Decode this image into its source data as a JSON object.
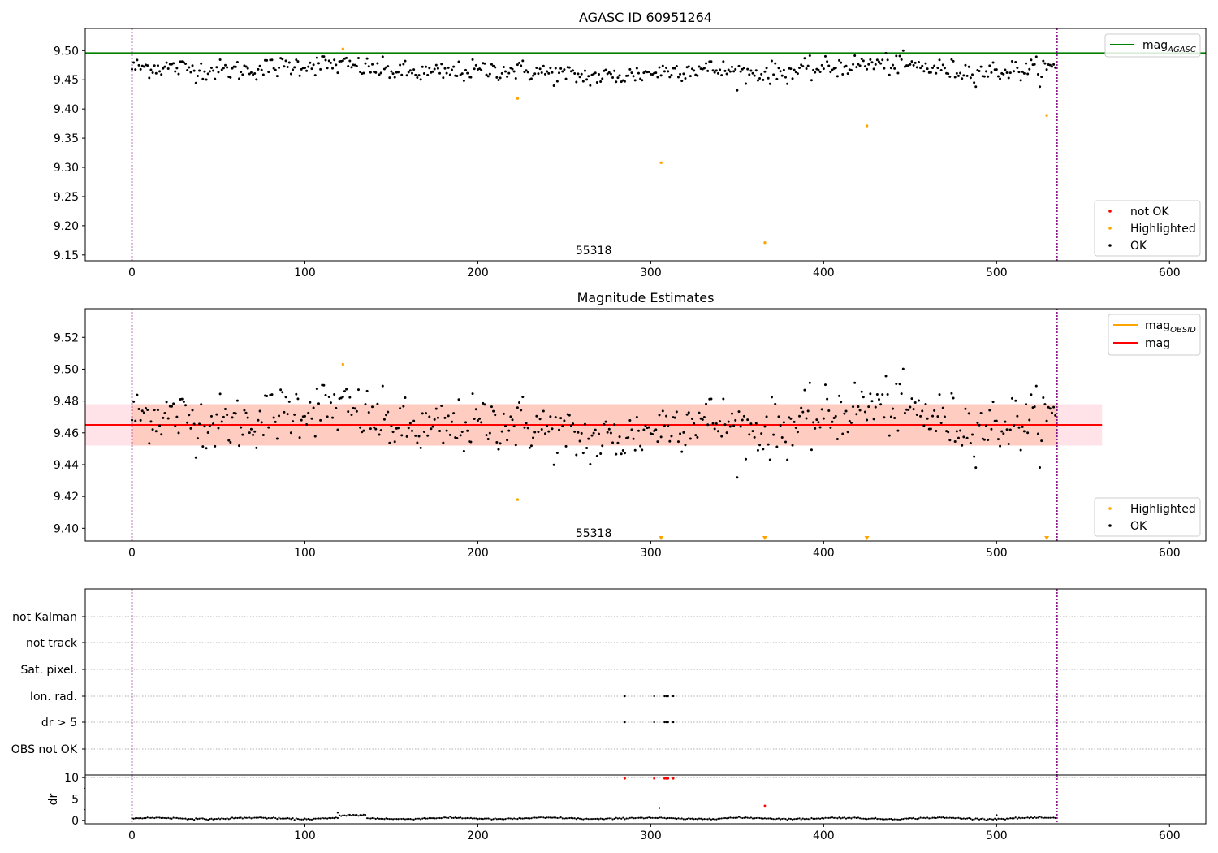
{
  "chart_data": [
    {
      "type": "scatter",
      "title": "AGASC ID 60951264",
      "xlim": [
        -27,
        621
      ],
      "ylim": [
        9.14,
        9.538
      ],
      "xticks": [
        0,
        100,
        200,
        300,
        400,
        500,
        600
      ],
      "yticks": [
        9.15,
        9.2,
        9.25,
        9.3,
        9.35,
        9.4,
        9.45,
        9.5
      ],
      "vlines": [
        0,
        535
      ],
      "annotation": {
        "text": "55318",
        "x": 267,
        "y": 9.158
      },
      "mag_agasc": 9.496,
      "ok_series": {
        "name": "OK",
        "color": "#000000",
        "n": 535,
        "center": 9.466,
        "noise": 0.011
      },
      "highlighted": {
        "name": "Highlighted",
        "color": "#ffa500",
        "points": [
          [
            122,
            9.503
          ],
          [
            223,
            9.418
          ],
          [
            306,
            9.308
          ],
          [
            366,
            9.171
          ],
          [
            425,
            9.371
          ],
          [
            529,
            9.389
          ]
        ]
      },
      "not_ok": {
        "name": "not OK",
        "color": "#ff0000",
        "points": []
      },
      "legends": {
        "lines": [
          {
            "label": "mag",
            "sub": "AGASC",
            "color": "#008000"
          }
        ],
        "points": [
          {
            "label": "not OK",
            "color": "#ff0000"
          },
          {
            "label": "Highlighted",
            "color": "#ffa500"
          },
          {
            "label": "OK",
            "color": "#000000"
          }
        ]
      }
    },
    {
      "type": "scatter",
      "title": "Magnitude Estimates",
      "xlim": [
        -27,
        621
      ],
      "ylim": [
        9.392,
        9.538
      ],
      "xticks": [
        0,
        100,
        200,
        300,
        400,
        500,
        600
      ],
      "yticks": [
        9.4,
        9.42,
        9.44,
        9.46,
        9.48,
        9.5,
        9.52
      ],
      "vlines": [
        0,
        535
      ],
      "annotation": {
        "text": "55318",
        "x": 267,
        "y": 9.397
      },
      "mag_line": {
        "value": 9.465,
        "color": "#ff0000"
      },
      "band_outer": {
        "x": [
          -27,
          561
        ],
        "y": [
          9.452,
          9.478
        ],
        "color": "#ffc0cb"
      },
      "band_inner": {
        "x": [
          0,
          535
        ],
        "y": [
          9.452,
          9.478
        ],
        "color": "#ffa07a"
      },
      "highlighted": {
        "name": "Highlighted",
        "color": "#ffa500",
        "points": [
          [
            122,
            9.503
          ],
          [
            223,
            9.418
          ]
        ]
      },
      "offscale_markers": {
        "color": "#ffa500",
        "x": [
          306,
          366,
          425,
          529
        ]
      },
      "legends": {
        "lines": [
          {
            "label": "mag",
            "sub": "OBSID",
            "color": "#ffa500"
          },
          {
            "label": "mag",
            "sub": "",
            "color": "#ff0000"
          }
        ],
        "points": [
          {
            "label": "Highlighted",
            "color": "#ffa500"
          },
          {
            "label": "OK",
            "color": "#000000"
          }
        ]
      }
    },
    {
      "type": "scatter",
      "title": "",
      "xlim": [
        -27,
        621
      ],
      "categories": [
        "not Kalman",
        "not track",
        "Sat. pixel.",
        "Ion. rad.",
        "dr > 5",
        "OBS not OK"
      ],
      "flag_points": {
        "Ion. rad.": [
          285,
          302,
          308,
          309,
          310,
          313
        ],
        "dr > 5": [
          285,
          302,
          308,
          309,
          310,
          313
        ]
      },
      "vlines": [
        0,
        535
      ]
    },
    {
      "type": "scatter",
      "title": "",
      "ylabel": "dr",
      "xlim": [
        -27,
        621
      ],
      "ylim": [
        -0.8,
        10.6
      ],
      "xticks": [
        0,
        100,
        200,
        300,
        400,
        500,
        600
      ],
      "yticks": [
        0,
        5,
        10
      ],
      "vlines": [
        0,
        535
      ],
      "red_points": [
        [
          285,
          9.8
        ],
        [
          302,
          9.8
        ],
        [
          308,
          9.8
        ],
        [
          309,
          9.8
        ],
        [
          310,
          9.8
        ],
        [
          313,
          9.8
        ],
        [
          366,
          3.4
        ]
      ],
      "extra_points": [
        [
          305,
          2.9
        ],
        [
          119,
          1.8
        ],
        [
          500,
          1.2
        ]
      ],
      "baseline": {
        "center": 0.45,
        "bump_start": 120,
        "bump_end": 135,
        "bump_value": 1.2
      }
    }
  ]
}
